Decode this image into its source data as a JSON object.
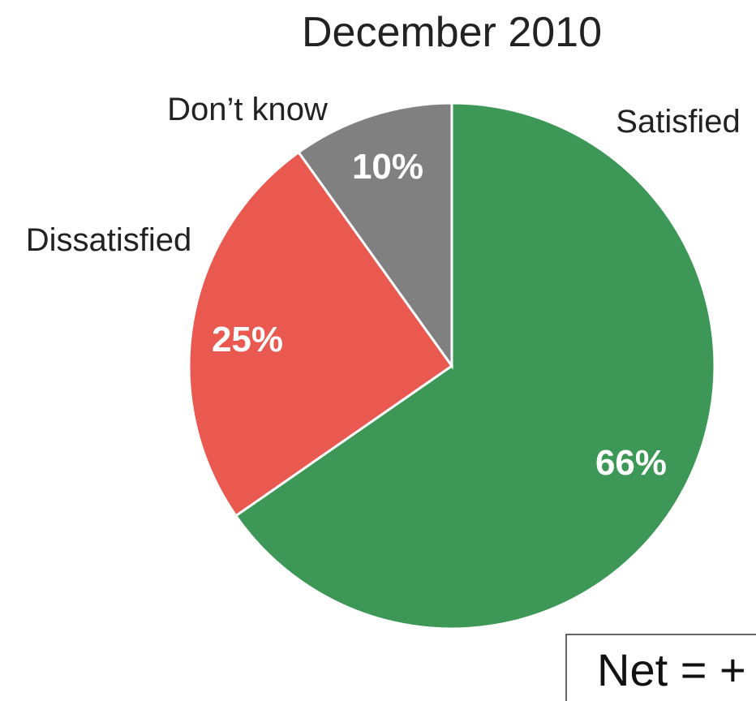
{
  "chart_data": {
    "type": "pie",
    "title": "December 2010",
    "slices": [
      {
        "label": "Satisfied",
        "value": 66,
        "value_label": "66%",
        "color": "#3d9857"
      },
      {
        "label": "Dissatisfied",
        "value": 25,
        "value_label": "25%",
        "color": "#ea5950"
      },
      {
        "label": "Don’t know",
        "value": 10,
        "value_label": "10%",
        "color": "#808080"
      }
    ],
    "start": "12 o'clock",
    "direction": "clockwise"
  },
  "annotation": {
    "net_text": "Net = +"
  }
}
